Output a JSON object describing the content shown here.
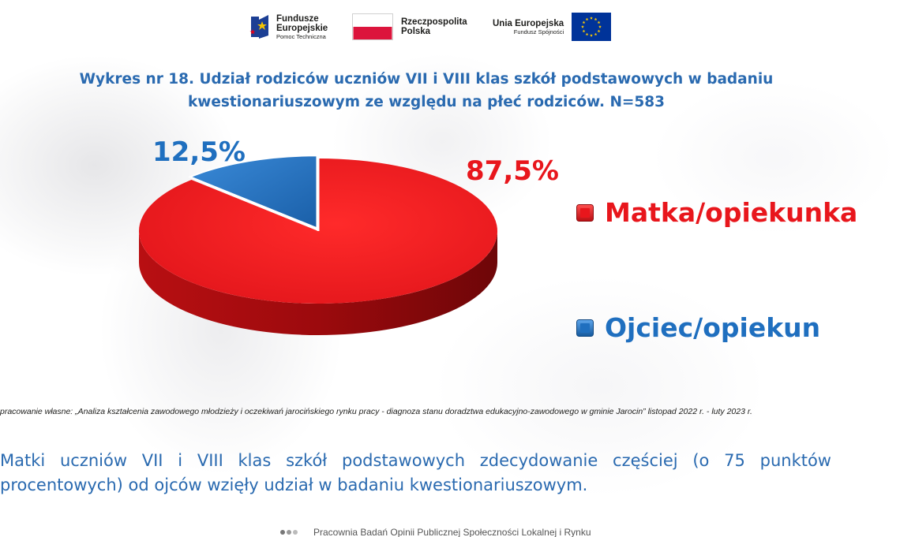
{
  "header": {
    "fe_logo": {
      "line1": "Fundusze",
      "line2": "Europejskie",
      "line3": "Pomoc Techniczna"
    },
    "rp_logo": {
      "line1": "Rzeczpospolita",
      "line2": "Polska"
    },
    "ue_logo": {
      "line1": "Unia Europejska",
      "line2": "Fundusz Spójności"
    }
  },
  "title": {
    "line1": "Wykres nr 18. Udział rodziców uczniów VII i VIII klas szkół podstawowych w badaniu",
    "line2": "kwestionariuszowym ze względu na płeć rodziców. N=583"
  },
  "chart_data": {
    "type": "pie",
    "title": "Wykres nr 18. Udział rodziców uczniów VII i VIII klas szkół podstawowych w badaniu kwestionariuszowym ze względu na płeć rodziców. N=583",
    "categories": [
      "Matka/opiekunka",
      "Ojciec/opiekun"
    ],
    "values": [
      87.5,
      12.5
    ],
    "data_labels": [
      "87,5%",
      "12,5%"
    ],
    "colors": [
      "#e8161c",
      "#1f6fbf"
    ],
    "legend_position": "right"
  },
  "source": "pracowanie własne: „Analiza kształcenia zawodowego młodzieży i oczekiwań jarocińskiego rynku pracy - diagnoza stanu doradztwa edukacyjno-zawodowego w gminie Jarocin” listopad 2022 r. - luty 2023 r.",
  "summary": "Matki uczniów VII i VIII klas szkół podstawowych zdecydowanie częściej (o 75 punktów procentowych) od ojców wzięły udział w badaniu kwestionariuszowym.",
  "footer": "Pracownia Badań Opinii Publicznej Społeczności Lokalnej i Rynku"
}
